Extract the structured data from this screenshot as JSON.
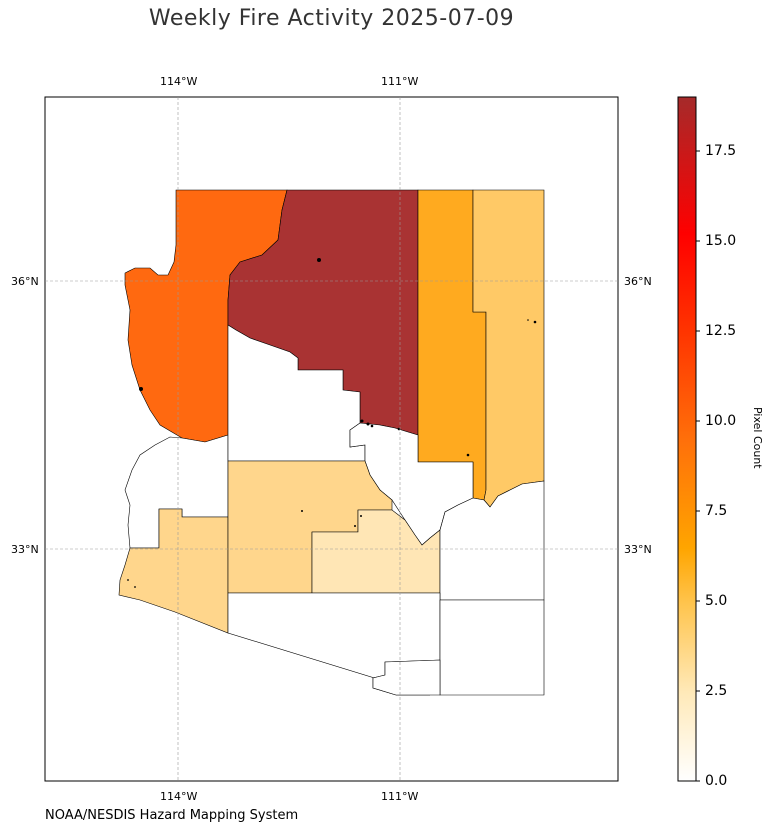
{
  "title": "Weekly Fire Activity 2025-07-09",
  "source": "NOAA/NESDIS Hazard Mapping System",
  "map": {
    "lon_labels": [
      "114°W",
      "111°W"
    ],
    "lat_labels": [
      "36°N",
      "33°N"
    ],
    "gridlines": true
  },
  "colorbar": {
    "label": "Pixel Count",
    "ticks": [
      "0.0",
      "2.5",
      "5.0",
      "7.5",
      "10.0",
      "12.5",
      "15.0",
      "17.5"
    ],
    "range": [
      0,
      19
    ],
    "colors": [
      "#ffffff",
      "#ffe9b8",
      "#ffc44d",
      "#ffa500",
      "#ff6f0a",
      "#ff3300",
      "#ff0000",
      "#a52a2a"
    ]
  },
  "chart_data": {
    "type": "choropleth",
    "title": "Weekly Fire Activity 2025-07-09",
    "colorbar_label": "Pixel Count",
    "colorbar_range": [
      0,
      19
    ],
    "regions": [
      {
        "id": "northwest",
        "value": 8.5,
        "color": "#ff6910"
      },
      {
        "id": "north-central",
        "value": 19,
        "color": "#a93333"
      },
      {
        "id": "northeast-west",
        "value": 5,
        "color": "#ffaa1f"
      },
      {
        "id": "northeast-east",
        "value": 3,
        "color": "#ffc966"
      },
      {
        "id": "west-central",
        "value": 0,
        "color": "#ffffff"
      },
      {
        "id": "central",
        "value": 0,
        "color": "#ffffff"
      },
      {
        "id": "central-east",
        "value": 0,
        "color": "#ffffff"
      },
      {
        "id": "southwest",
        "value": 2.5,
        "color": "#ffd68c"
      },
      {
        "id": "south-central-west",
        "value": 2.5,
        "color": "#ffd68c"
      },
      {
        "id": "south-central",
        "value": 1.5,
        "color": "#ffe6b5"
      },
      {
        "id": "southeast",
        "value": 0,
        "color": "#ffffff"
      },
      {
        "id": "south",
        "value": 0,
        "color": "#ffffff"
      }
    ]
  }
}
